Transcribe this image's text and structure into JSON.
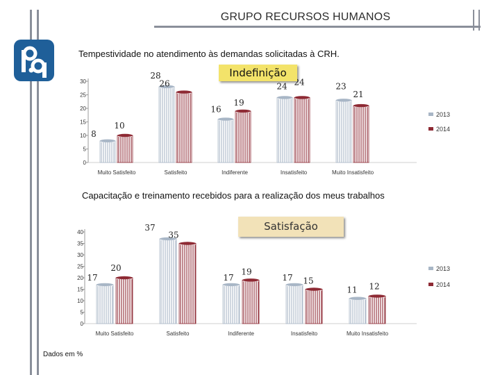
{
  "page": {
    "title": "GRUPO RECURSOS HUMANOS",
    "footnote": "Dados em %"
  },
  "colors": {
    "series_2013": "#a8b6c6",
    "series_2014": "#8e2a34",
    "logo": "#1f5f99",
    "callout_1": "#f3e36a",
    "callout_2": "#f2e2b8"
  },
  "chart_data": [
    {
      "type": "bar",
      "title": "Tempestividade no atendimento às demandas solicitadas à CRH.",
      "callout": "Indefinição",
      "categories": [
        "Muito Satisfeito",
        "Satisfeito",
        "Indiferente",
        "Insatisfeito",
        "Muito Insatisfeito"
      ],
      "series": [
        {
          "name": "2013",
          "values": [
            8,
            28,
            16,
            24,
            23
          ]
        },
        {
          "name": "2014",
          "values": [
            10,
            26,
            19,
            24,
            21
          ]
        }
      ],
      "ylim": [
        0,
        30
      ],
      "yticks": [
        0,
        5,
        10,
        15,
        20,
        25,
        30
      ],
      "legend": "right"
    },
    {
      "type": "bar",
      "title": "Capacitação e treinamento recebidos para a realização dos meus trabalhos",
      "callout": "Satisfação",
      "categories": [
        "Muito Satisfeito",
        "Satisfeito",
        "Indiferente",
        "Insatisfeito",
        "Muito Insatisfeito"
      ],
      "series": [
        {
          "name": "2013",
          "values": [
            17,
            37,
            17,
            17,
            11
          ]
        },
        {
          "name": "2014",
          "values": [
            20,
            35,
            19,
            15,
            12
          ]
        }
      ],
      "ylim": [
        0,
        40
      ],
      "yticks": [
        0,
        5,
        10,
        15,
        20,
        25,
        30,
        35,
        40
      ],
      "legend": "right"
    }
  ]
}
